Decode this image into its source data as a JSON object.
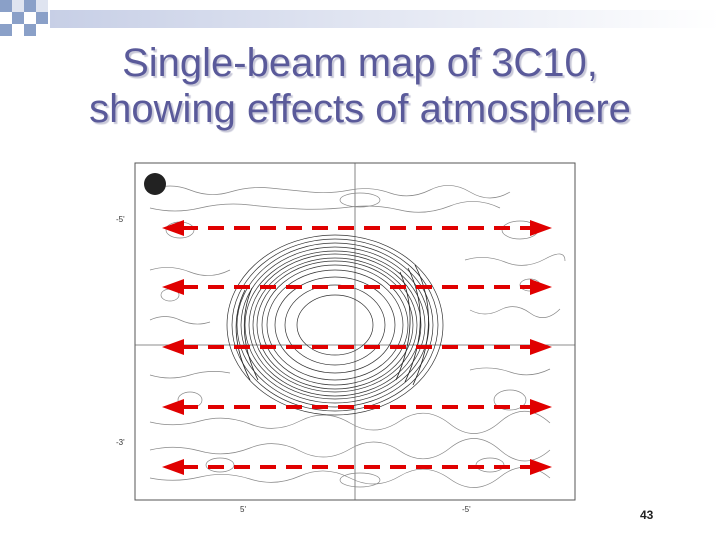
{
  "slide": {
    "title_line1": "Single-beam map of 3C10,",
    "title_line2": "showing effects of atmosphere",
    "page_number": "43"
  },
  "figure": {
    "y_tick_top": "-5'",
    "y_tick_bottom": "-3'",
    "x_tick_left": "5'",
    "x_tick_right": "-5'"
  },
  "colors": {
    "title": "#5a5a9a",
    "arrow": "#e00000",
    "deco_square": "#8aa0c8"
  }
}
